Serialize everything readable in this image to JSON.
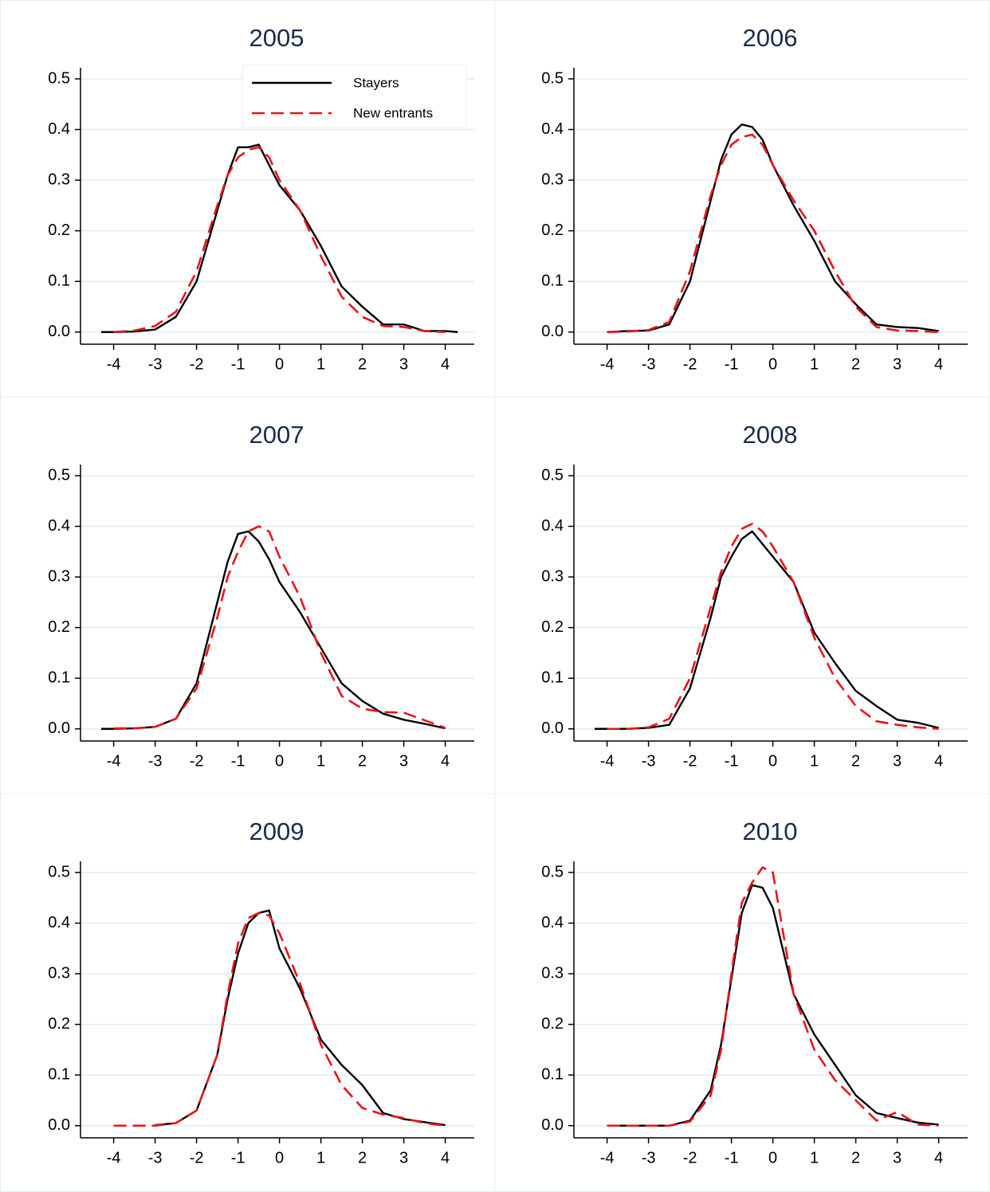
{
  "chart_data": [
    {
      "type": "line",
      "title": "2005",
      "legend": "top-center",
      "x": [
        -4.3,
        -4,
        -3.5,
        -3,
        -2.5,
        -2,
        -1.5,
        -1.25,
        -1,
        -0.75,
        -0.5,
        -0.25,
        0,
        0.5,
        1,
        1.5,
        2,
        2.5,
        3,
        3.5,
        4,
        4.3
      ],
      "series": [
        {
          "name": "Stayers",
          "color": "#000000",
          "style": "solid",
          "values": [
            0,
            0,
            0.001,
            0.005,
            0.03,
            0.1,
            0.24,
            0.31,
            0.365,
            0.365,
            0.37,
            0.33,
            0.29,
            0.24,
            0.17,
            0.09,
            0.05,
            0.015,
            0.015,
            0.002,
            0.002,
            0
          ]
        },
        {
          "name": "New entrants",
          "color": "#e8141a",
          "style": "dashed",
          "values": [
            null,
            0,
            0.003,
            0.012,
            0.04,
            0.12,
            0.25,
            0.31,
            0.345,
            0.36,
            0.365,
            0.345,
            0.3,
            0.24,
            0.15,
            0.07,
            0.03,
            0.012,
            0.01,
            0.002,
            0,
            null
          ]
        }
      ],
      "xlim": [
        -4.8,
        4.7
      ],
      "ylim": [
        -0.024,
        0.522
      ],
      "xticks": [
        -4,
        -3,
        -2,
        -1,
        0,
        1,
        2,
        3,
        4
      ],
      "yticks": [
        {
          "value": 0,
          "label": "0.0"
        },
        0.1,
        0.2,
        0.3,
        0.4,
        0.5
      ],
      "grid": true
    },
    {
      "type": "line",
      "title": "2006",
      "x": [
        -4.3,
        -4,
        -3.5,
        -3,
        -2.5,
        -2,
        -1.5,
        -1.25,
        -1,
        -0.75,
        -0.5,
        -0.25,
        0,
        0.5,
        1,
        1.5,
        2,
        2.5,
        3,
        3.5,
        4,
        4.3
      ],
      "series": [
        {
          "name": "Stayers",
          "color": "#000000",
          "style": "solid",
          "values": [
            null,
            0,
            0.002,
            0.003,
            0.015,
            0.1,
            0.26,
            0.34,
            0.39,
            0.41,
            0.405,
            0.38,
            0.33,
            0.25,
            0.18,
            0.1,
            0.055,
            0.015,
            0.01,
            0.008,
            0.002,
            null
          ]
        },
        {
          "name": "New entrants",
          "color": "#e8141a",
          "style": "dashed",
          "values": [
            null,
            0,
            0.001,
            0.004,
            0.02,
            0.12,
            0.27,
            0.33,
            0.37,
            0.385,
            0.39,
            0.37,
            0.33,
            0.26,
            0.2,
            0.12,
            0.05,
            0.01,
            0.003,
            0.002,
            0,
            null
          ]
        }
      ],
      "xlim": [
        -4.8,
        4.7
      ],
      "ylim": [
        -0.024,
        0.522
      ],
      "xticks": [
        -4,
        -3,
        -2,
        -1,
        0,
        1,
        2,
        3,
        4
      ],
      "yticks": [
        {
          "value": 0,
          "label": "0.0"
        },
        0.1,
        0.2,
        0.3,
        0.4,
        0.5
      ],
      "grid": true
    },
    {
      "type": "line",
      "title": "2007",
      "x": [
        -4.3,
        -4,
        -3.5,
        -3,
        -2.5,
        -2,
        -1.5,
        -1.25,
        -1,
        -0.75,
        -0.5,
        -0.25,
        0,
        0.5,
        1,
        1.5,
        2,
        2.5,
        3,
        3.5,
        4,
        4.3
      ],
      "series": [
        {
          "name": "Stayers",
          "color": "#000000",
          "style": "solid",
          "values": [
            0,
            0,
            0.001,
            0.004,
            0.02,
            0.09,
            0.25,
            0.33,
            0.385,
            0.39,
            0.37,
            0.335,
            0.29,
            0.23,
            0.16,
            0.09,
            0.055,
            0.03,
            0.018,
            0.01,
            0.001,
            null
          ]
        },
        {
          "name": "New entrants",
          "color": "#e8141a",
          "style": "dashed",
          "values": [
            null,
            0.001,
            0.001,
            0.004,
            0.02,
            0.08,
            0.22,
            0.3,
            0.35,
            0.39,
            0.4,
            0.39,
            0.34,
            0.26,
            0.15,
            0.065,
            0.04,
            0.033,
            0.032,
            0.017,
            0.002,
            null
          ]
        }
      ],
      "xlim": [
        -4.8,
        4.7
      ],
      "ylim": [
        -0.024,
        0.522
      ],
      "xticks": [
        -4,
        -3,
        -2,
        -1,
        0,
        1,
        2,
        3,
        4
      ],
      "yticks": [
        {
          "value": 0,
          "label": "0.0"
        },
        0.1,
        0.2,
        0.3,
        0.4,
        0.5
      ],
      "grid": true
    },
    {
      "type": "line",
      "title": "2008",
      "x": [
        -4.3,
        -4,
        -3.5,
        -3,
        -2.5,
        -2,
        -1.5,
        -1.25,
        -1,
        -0.75,
        -0.5,
        -0.25,
        0,
        0.5,
        1,
        1.5,
        2,
        2.5,
        3,
        3.5,
        4,
        4.3
      ],
      "series": [
        {
          "name": "Stayers",
          "color": "#000000",
          "style": "solid",
          "values": [
            0,
            0,
            0,
            0.002,
            0.008,
            0.08,
            0.22,
            0.3,
            0.34,
            0.375,
            0.39,
            0.365,
            0.34,
            0.29,
            0.19,
            0.13,
            0.075,
            0.045,
            0.018,
            0.012,
            0.002,
            null
          ]
        },
        {
          "name": "New entrants",
          "color": "#e8141a",
          "style": "dashed",
          "values": [
            null,
            0,
            0,
            0.003,
            0.02,
            0.1,
            0.24,
            0.31,
            0.36,
            0.395,
            0.405,
            0.39,
            0.36,
            0.29,
            0.18,
            0.1,
            0.045,
            0.015,
            0.008,
            0.003,
            0,
            null
          ]
        }
      ],
      "xlim": [
        -4.8,
        4.7
      ],
      "ylim": [
        -0.024,
        0.522
      ],
      "xticks": [
        -4,
        -3,
        -2,
        -1,
        0,
        1,
        2,
        3,
        4
      ],
      "yticks": [
        {
          "value": 0,
          "label": "0.0"
        },
        0.1,
        0.2,
        0.3,
        0.4,
        0.5
      ],
      "grid": true
    },
    {
      "type": "line",
      "title": "2009",
      "x": [
        -4.3,
        -4,
        -3.5,
        -3,
        -2.5,
        -2,
        -1.5,
        -1.25,
        -1,
        -0.75,
        -0.5,
        -0.25,
        0,
        0.5,
        1,
        1.5,
        2,
        2.5,
        3,
        3.5,
        4,
        4.3
      ],
      "series": [
        {
          "name": "Stayers",
          "color": "#000000",
          "style": "solid",
          "values": [
            null,
            null,
            null,
            0.001,
            0.005,
            0.03,
            0.14,
            0.25,
            0.34,
            0.4,
            0.42,
            0.425,
            0.35,
            0.27,
            0.17,
            0.12,
            0.08,
            0.025,
            0.013,
            0.007,
            0.001,
            null
          ]
        },
        {
          "name": "New entrants",
          "color": "#e8141a",
          "style": "dashed",
          "values": [
            null,
            0,
            0,
            0,
            0.005,
            0.03,
            0.14,
            0.26,
            0.36,
            0.41,
            0.42,
            0.415,
            0.38,
            0.28,
            0.16,
            0.08,
            0.035,
            0.022,
            0.015,
            0.005,
            0,
            null
          ]
        }
      ],
      "xlim": [
        -4.8,
        4.7
      ],
      "ylim": [
        -0.024,
        0.522
      ],
      "xticks": [
        -4,
        -3,
        -2,
        -1,
        0,
        1,
        2,
        3,
        4
      ],
      "yticks": [
        {
          "value": 0,
          "label": "0.0"
        },
        0.1,
        0.2,
        0.3,
        0.4,
        0.5
      ],
      "grid": true
    },
    {
      "type": "line",
      "title": "2010",
      "x": [
        -4.3,
        -4,
        -3.5,
        -3,
        -2.5,
        -2,
        -1.5,
        -1.25,
        -1,
        -0.75,
        -0.5,
        -0.25,
        0,
        0.5,
        1,
        1.5,
        2,
        2.5,
        3,
        3.5,
        4,
        4.3
      ],
      "series": [
        {
          "name": "Stayers",
          "color": "#000000",
          "style": "solid",
          "values": [
            null,
            0,
            0,
            0,
            0,
            0.01,
            0.07,
            0.16,
            0.29,
            0.42,
            0.475,
            0.47,
            0.43,
            0.26,
            0.18,
            0.12,
            0.06,
            0.025,
            0.015,
            0.006,
            0.002,
            null
          ]
        },
        {
          "name": "New entrants",
          "color": "#e8141a",
          "style": "dashed",
          "values": [
            null,
            0,
            0,
            0,
            0,
            0.008,
            0.06,
            0.15,
            0.3,
            0.44,
            0.48,
            0.51,
            0.5,
            0.26,
            0.15,
            0.09,
            0.05,
            0.01,
            0.027,
            0.002,
            0,
            null
          ]
        }
      ],
      "xlim": [
        -4.8,
        4.7
      ],
      "ylim": [
        -0.024,
        0.522
      ],
      "xticks": [
        -4,
        -3,
        -2,
        -1,
        0,
        1,
        2,
        3,
        4
      ],
      "yticks": [
        {
          "value": 0,
          "label": "0.0"
        },
        0.1,
        0.2,
        0.3,
        0.4,
        0.5
      ],
      "grid": true
    }
  ]
}
